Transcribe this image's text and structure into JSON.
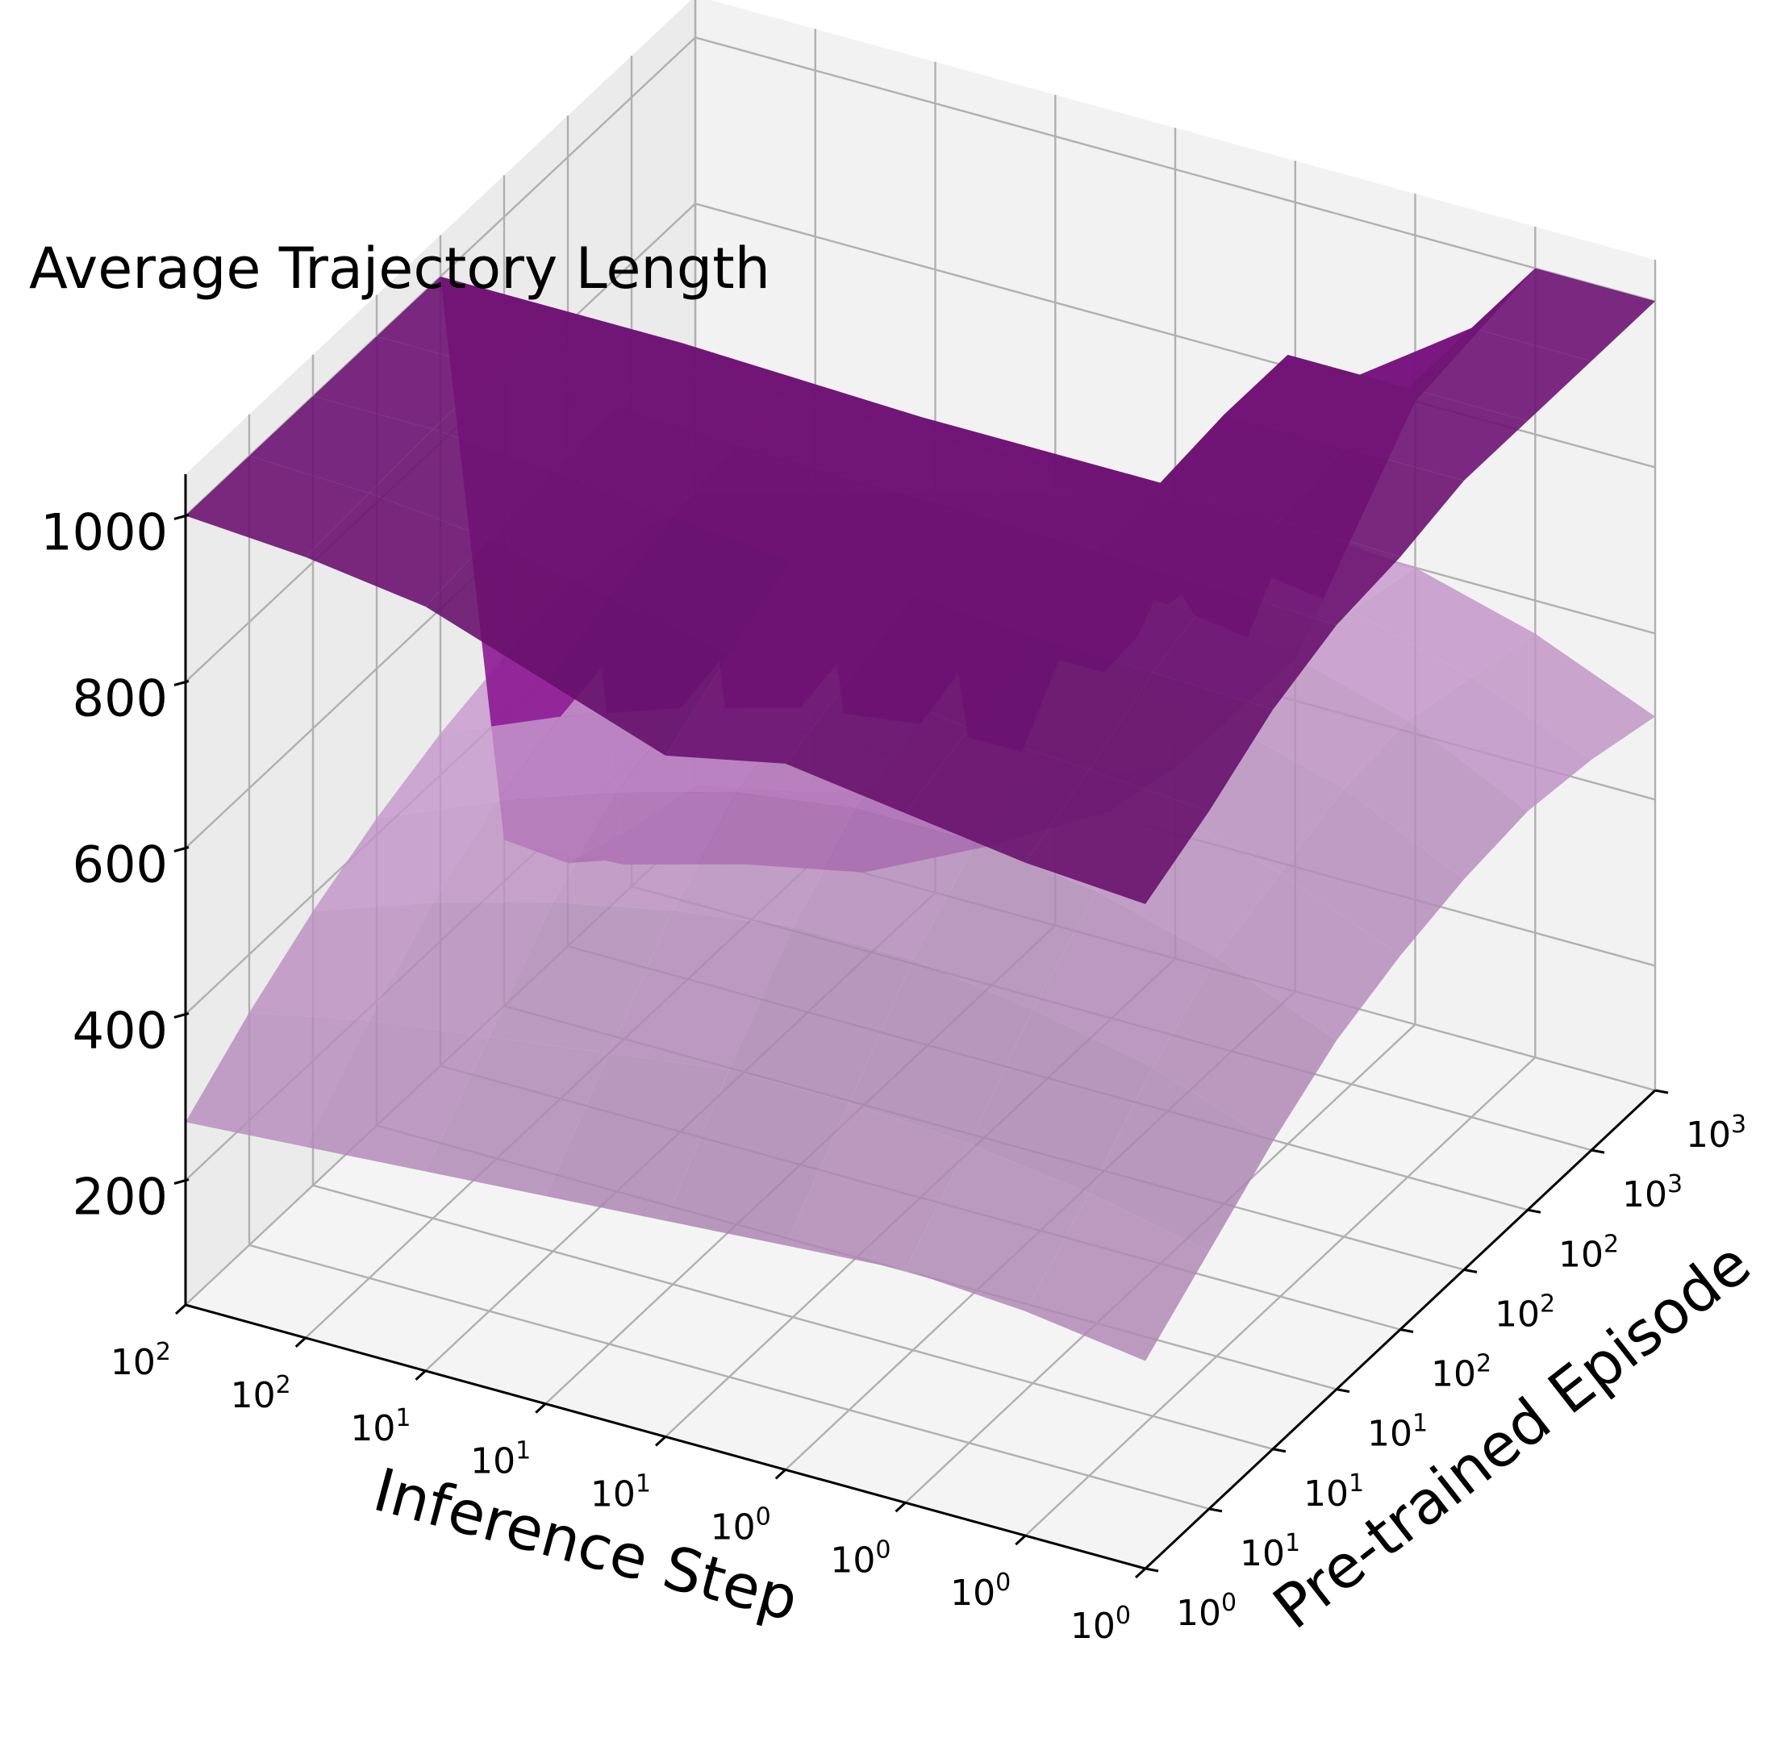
{
  "chart_data": {
    "type": "surface3d",
    "title": "Average Trajectory Length",
    "xlabel": "Inference Step",
    "ylabel": "Pre-trained Episode",
    "zlabel": "",
    "x_ticks": [
      "10^2",
      "10^2",
      "10^1",
      "10^1",
      "10^1",
      "10^0",
      "10^0",
      "10^0",
      "10^0"
    ],
    "y_ticks": [
      "10^0",
      "10^1",
      "10^1",
      "10^1",
      "10^2",
      "10^2",
      "10^2",
      "10^3",
      "10^3"
    ],
    "z_ticks": [
      200,
      400,
      600,
      800,
      1000
    ],
    "zlim": [
      50,
      1050
    ],
    "grid": true,
    "series": [
      {
        "color": "#d9a6e0",
        "values": [
          [
            270,
            280,
            290,
            300,
            310,
            320,
            330,
            320,
            300
          ],
          [
            330,
            360,
            380,
            400,
            420,
            420,
            410,
            390,
            360
          ],
          [
            380,
            430,
            470,
            500,
            520,
            520,
            500,
            470,
            420
          ],
          [
            420,
            480,
            530,
            570,
            590,
            590,
            570,
            530,
            470
          ],
          [
            450,
            510,
            560,
            600,
            620,
            620,
            600,
            560,
            500
          ],
          [
            470,
            530,
            580,
            620,
            650,
            650,
            630,
            590,
            520
          ],
          [
            480,
            540,
            590,
            630,
            660,
            660,
            640,
            600,
            530
          ],
          [
            470,
            520,
            560,
            600,
            630,
            640,
            620,
            580,
            520
          ],
          [
            450,
            490,
            530,
            570,
            600,
            610,
            600,
            560,
            500
          ]
        ]
      },
      {
        "color": "#7a1580",
        "values": [
          [
            1000,
            990,
            970,
            920,
            870,
            900,
            880,
            860,
            850
          ],
          [
            1000,
            995,
            980,
            950,
            920,
            930,
            910,
            900,
            890
          ],
          [
            1000,
            1000,
            990,
            975,
            960,
            960,
            950,
            945,
            940
          ],
          [
            1000,
            1000,
            995,
            990,
            985,
            985,
            980,
            975,
            970
          ],
          [
            1000,
            1000,
            1000,
            995,
            990,
            990,
            990,
            985,
            980
          ],
          [
            250,
            260,
            300,
            330,
            400,
            800,
            1000,
            1000,
            1000
          ],
          [
            150,
            200,
            250,
            300,
            350,
            700,
            1000,
            1000,
            1000
          ],
          [
            120,
            150,
            200,
            260,
            300,
            500,
            900,
            1000,
            1000
          ],
          [
            100,
            130,
            180,
            230,
            280,
            450,
            800,
            1000,
            1000
          ]
        ]
      }
    ]
  }
}
